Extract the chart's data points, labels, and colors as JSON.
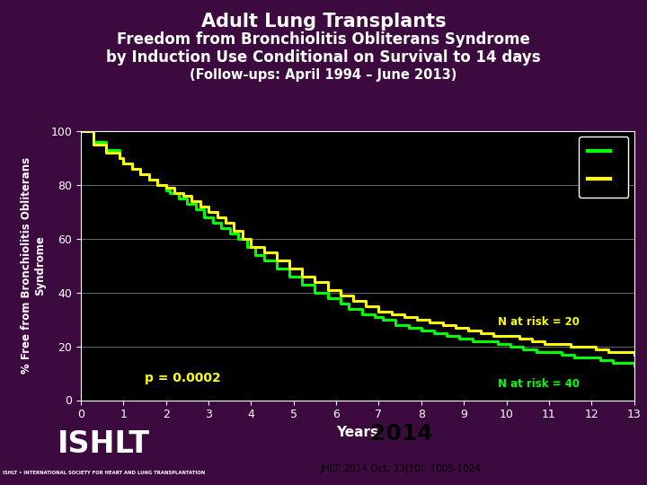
{
  "title_line1": "Adult Lung Transplants",
  "title_line2": "Freedom from Bronchiolitis Obliterans Syndrome",
  "title_line3": "by Induction Use Conditional on Survival to 14 days",
  "title_line4": "(Follow-ups: April 1994 – June 2013)",
  "xlabel": "Years",
  "ylabel": "% Free from Bronchiolitis Obliterans\nSyndrome",
  "bg_outer": "#3d0a40",
  "bg_plot": "#000000",
  "axis_color": "#ffffff",
  "grid_color": "#808080",
  "ylim": [
    0,
    100
  ],
  "xlim": [
    0,
    13
  ],
  "yticks": [
    0,
    20,
    40,
    60,
    80,
    100
  ],
  "xticks": [
    0,
    1,
    2,
    3,
    4,
    5,
    6,
    7,
    8,
    9,
    10,
    11,
    12,
    13
  ],
  "green_x": [
    0,
    0.3,
    0.6,
    0.9,
    1.0,
    1.2,
    1.4,
    1.6,
    1.8,
    2.0,
    2.1,
    2.3,
    2.5,
    2.7,
    2.9,
    3.1,
    3.3,
    3.5,
    3.7,
    3.9,
    4.1,
    4.3,
    4.6,
    4.9,
    5.2,
    5.5,
    5.8,
    6.1,
    6.3,
    6.6,
    6.9,
    7.1,
    7.4,
    7.7,
    8.0,
    8.3,
    8.6,
    8.9,
    9.2,
    9.5,
    9.8,
    10.1,
    10.4,
    10.7,
    11.0,
    11.3,
    11.6,
    11.9,
    12.2,
    12.5,
    12.8,
    13.0
  ],
  "green_y": [
    100,
    96,
    93,
    90,
    88,
    86,
    84,
    82,
    80,
    78,
    77,
    75,
    73,
    71,
    68,
    66,
    64,
    62,
    60,
    57,
    54,
    52,
    49,
    46,
    43,
    40,
    38,
    36,
    34,
    32,
    31,
    30,
    28,
    27,
    26,
    25,
    24,
    23,
    22,
    22,
    21,
    20,
    19,
    18,
    18,
    17,
    16,
    16,
    15,
    14,
    14,
    13
  ],
  "yellow_x": [
    0,
    0.3,
    0.6,
    0.9,
    1.0,
    1.2,
    1.4,
    1.6,
    1.8,
    2.0,
    2.2,
    2.4,
    2.6,
    2.8,
    3.0,
    3.2,
    3.4,
    3.6,
    3.8,
    4.0,
    4.3,
    4.6,
    4.9,
    5.2,
    5.5,
    5.8,
    6.1,
    6.4,
    6.7,
    7.0,
    7.3,
    7.6,
    7.9,
    8.2,
    8.5,
    8.8,
    9.1,
    9.4,
    9.7,
    10.0,
    10.3,
    10.6,
    10.9,
    11.2,
    11.5,
    11.8,
    12.1,
    12.4,
    12.7,
    13.0
  ],
  "yellow_y": [
    100,
    95,
    92,
    90,
    88,
    86,
    84,
    82,
    80,
    79,
    77,
    76,
    74,
    72,
    70,
    68,
    66,
    63,
    60,
    57,
    55,
    52,
    49,
    46,
    44,
    41,
    39,
    37,
    35,
    33,
    32,
    31,
    30,
    29,
    28,
    27,
    26,
    25,
    24,
    24,
    23,
    22,
    21,
    21,
    20,
    20,
    19,
    18,
    18,
    17
  ],
  "green_color": "#00ff00",
  "yellow_color": "#ffff00",
  "line_width": 2.2,
  "p_value_text": "p = 0.0002",
  "p_value_x": 1.5,
  "p_value_y": 7,
  "n_risk_20_text": "N at risk = 20",
  "n_risk_20_x": 9.8,
  "n_risk_20_y": 28,
  "n_risk_40_text": "N at risk = 40",
  "n_risk_40_x": 9.8,
  "n_risk_40_y": 5,
  "footer_text1": "2014",
  "footer_text2": "JHLT. 2014 Oct; 33(10): 1009-1024",
  "ishlt_text": "ISHLT • INTERNATIONAL SOCIETY FOR HEART AND LUNG TRANSPLANTATION"
}
